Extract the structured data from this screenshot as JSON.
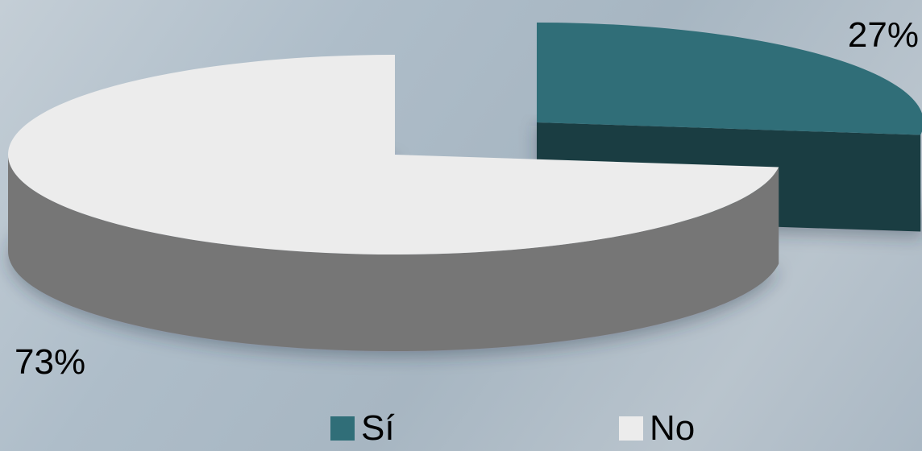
{
  "chart_data": {
    "type": "pie",
    "categories": [
      "Sí",
      "No"
    ],
    "values": [
      27,
      73
    ],
    "value_labels": [
      "27%",
      "73%"
    ],
    "colors": {
      "Sí": "#306e78",
      "No": "#ececec"
    },
    "legend_position": "bottom"
  }
}
